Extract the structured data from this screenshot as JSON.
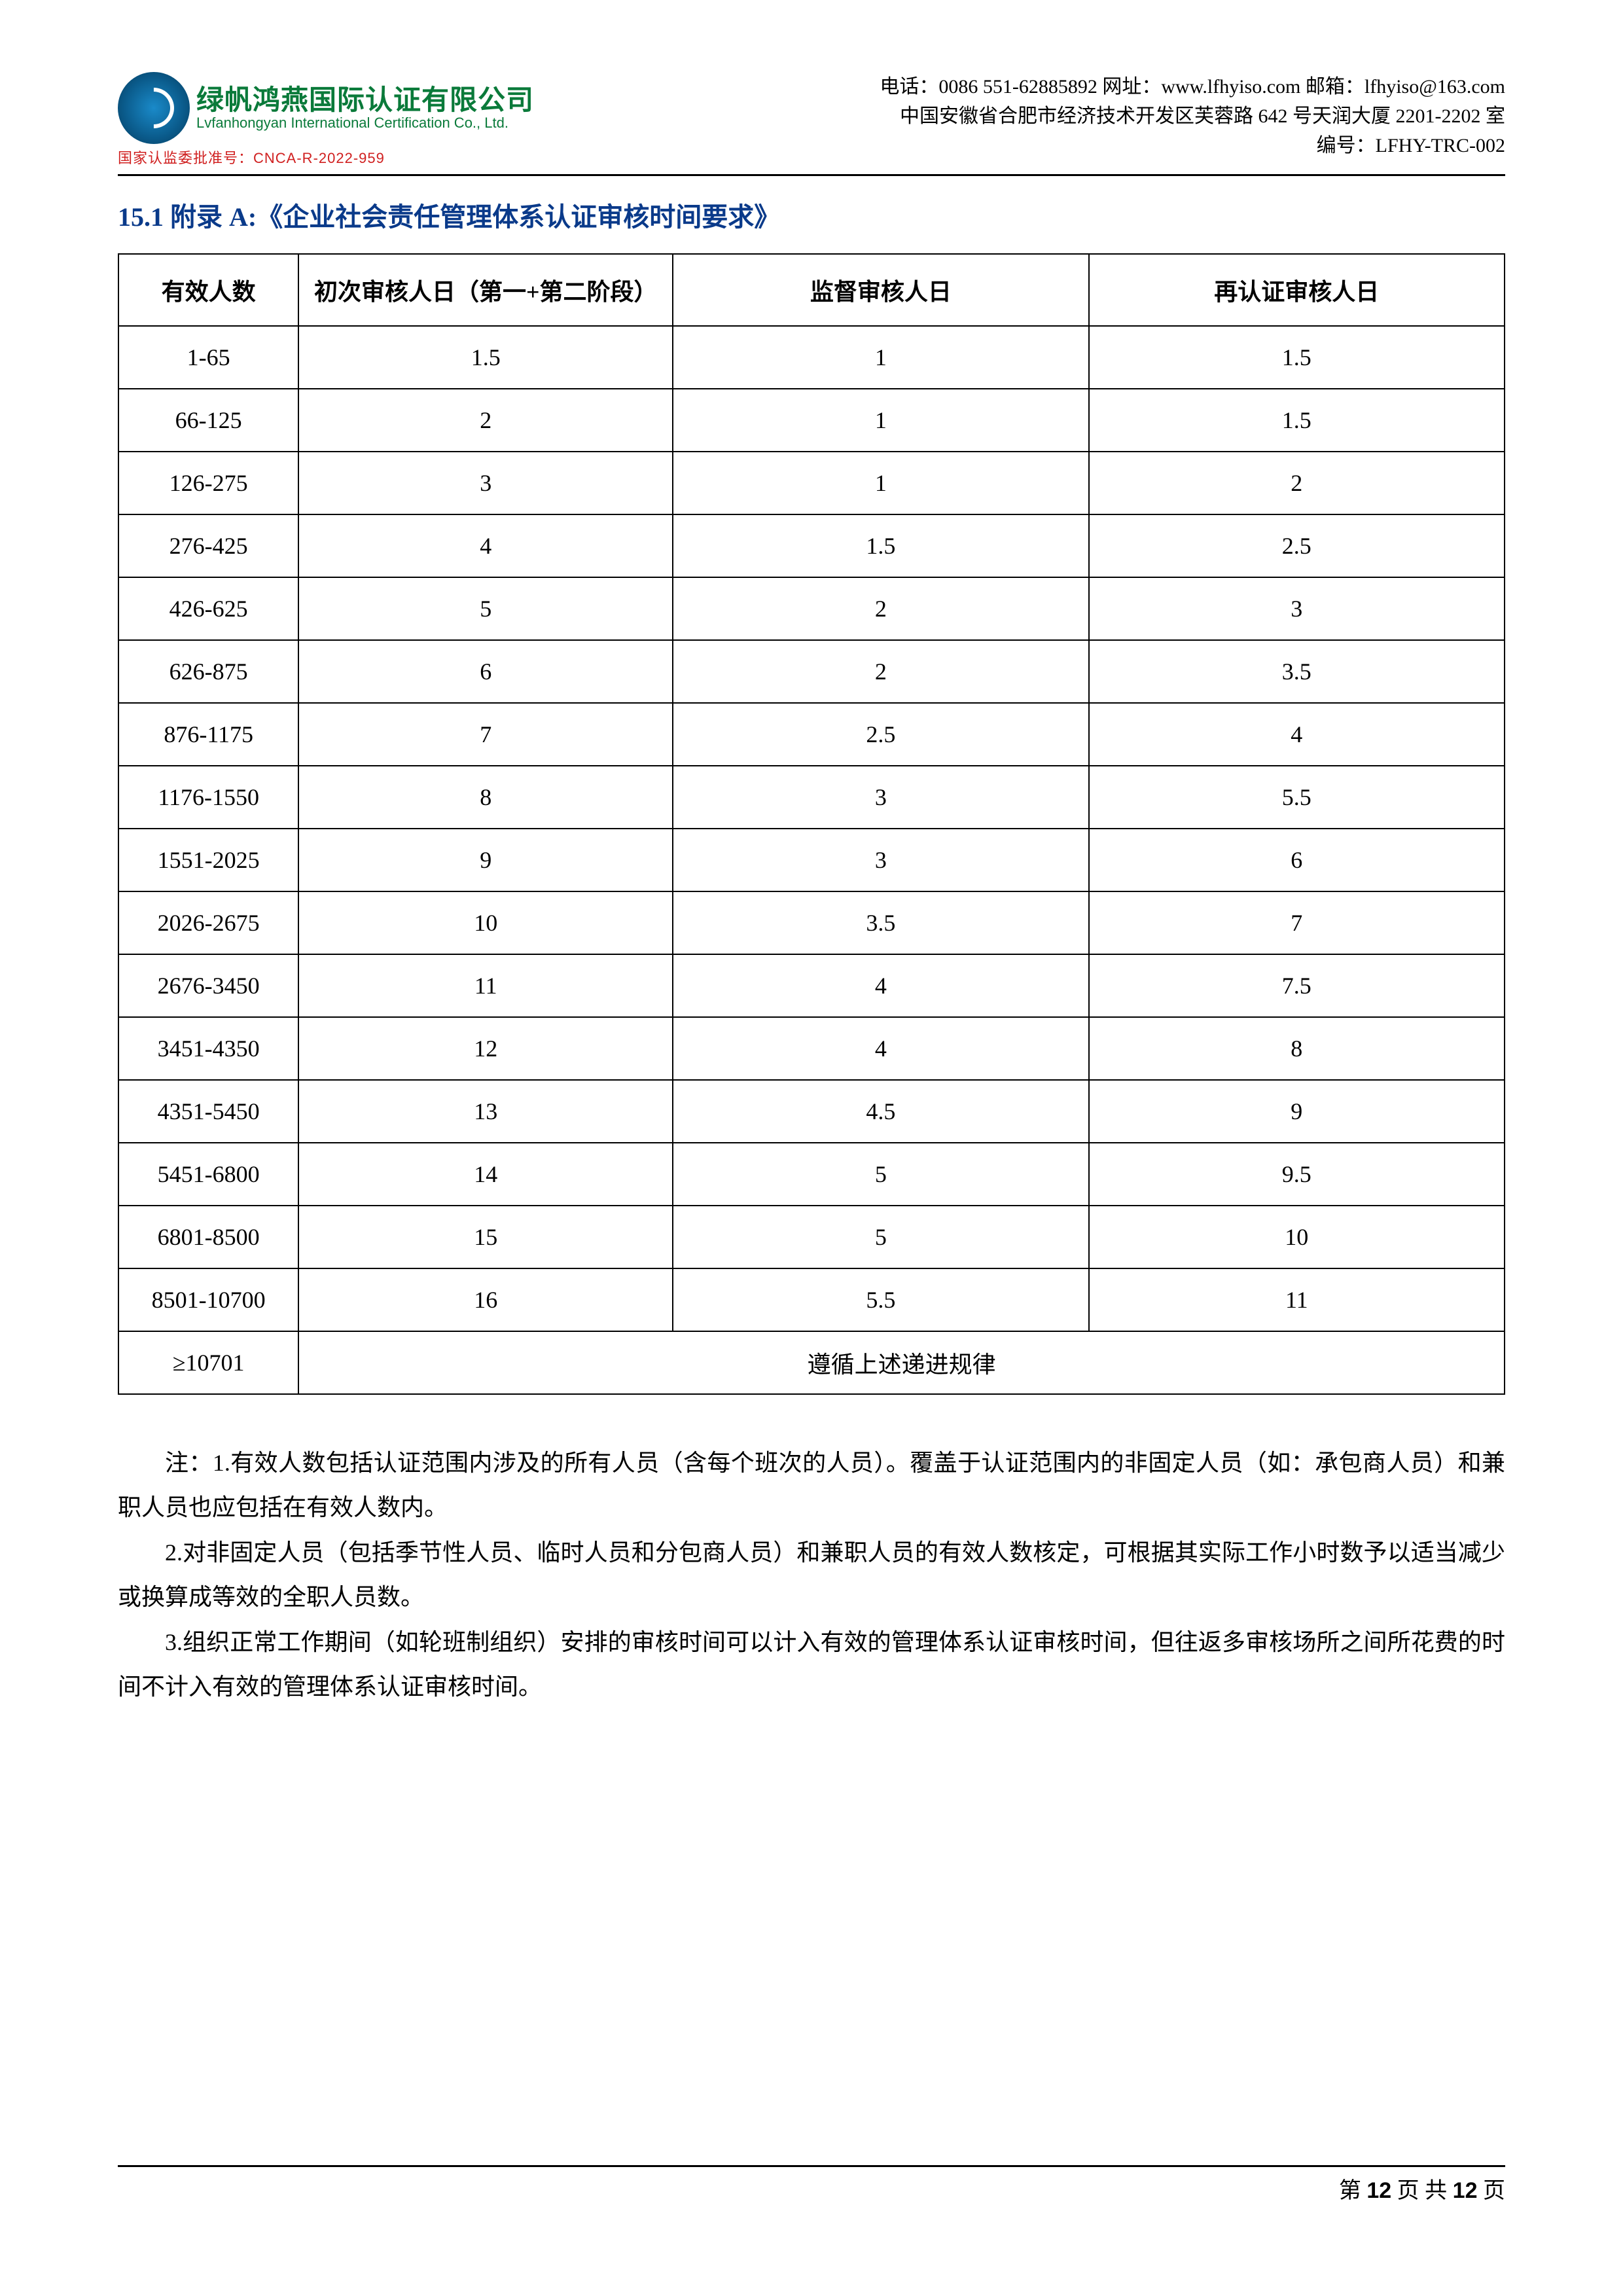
{
  "header": {
    "company_cn": "绿帆鸿燕国际认证有限公司",
    "company_en": "Lvfanhongyan International Certification Co., Ltd.",
    "approval_label": "国家认监委批准号：",
    "approval_code": "CNCA-R-2022-959",
    "contact_line1": "电话：0086 551-62885892 网址：www.lfhyiso.com 邮箱：lfhyiso@163.com",
    "contact_line2": "中国安徽省合肥市经济技术开发区芙蓉路 642 号天润大厦 2201-2202 室",
    "contact_line3": "编号：LFHY-TRC-002"
  },
  "section_title": "15.1 附录 A:《企业社会责任管理体系认证审核时间要求》",
  "table": {
    "columns": [
      "有效人数",
      "初次审核人日（第一+第二阶段）",
      "监督审核人日",
      "再认证审核人日"
    ],
    "rows": [
      [
        "1-65",
        "1.5",
        "1",
        "1.5"
      ],
      [
        "66-125",
        "2",
        "1",
        "1.5"
      ],
      [
        "126-275",
        "3",
        "1",
        "2"
      ],
      [
        "276-425",
        "4",
        "1.5",
        "2.5"
      ],
      [
        "426-625",
        "5",
        "2",
        "3"
      ],
      [
        "626-875",
        "6",
        "2",
        "3.5"
      ],
      [
        "876-1175",
        "7",
        "2.5",
        "4"
      ],
      [
        "1176-1550",
        "8",
        "3",
        "5.5"
      ],
      [
        "1551-2025",
        "9",
        "3",
        "6"
      ],
      [
        "2026-2675",
        "10",
        "3.5",
        "7"
      ],
      [
        "2676-3450",
        "11",
        "4",
        "7.5"
      ],
      [
        "3451-4350",
        "12",
        "4",
        "8"
      ],
      [
        "4351-5450",
        "13",
        "4.5",
        "9"
      ],
      [
        "5451-6800",
        "14",
        "5",
        "9.5"
      ],
      [
        "6801-8500",
        "15",
        "5",
        "10"
      ],
      [
        "8501-10700",
        "16",
        "5.5",
        "11"
      ]
    ],
    "last_row_label": "≥10701",
    "last_row_text": "遵循上述递进规律"
  },
  "notes": {
    "p1": "注：1.有效人数包括认证范围内涉及的所有人员（含每个班次的人员）。覆盖于认证范围内的非固定人员（如：承包商人员）和兼职人员也应包括在有效人数内。",
    "p2": "2.对非固定人员（包括季节性人员、临时人员和分包商人员）和兼职人员的有效人数核定，可根据其实际工作小时数予以适当减少或换算成等效的全职人员数。",
    "p3": "3.组织正常工作期间（如轮班制组织）安排的审核时间可以计入有效的管理体系认证审核时间，但往返多审核场所之间所花费的时间不计入有效的管理体系认证审核时间。"
  },
  "footer": {
    "prefix": "第 ",
    "page": "12",
    "mid": " 页 共 ",
    "total": "12",
    "suffix": " 页"
  }
}
